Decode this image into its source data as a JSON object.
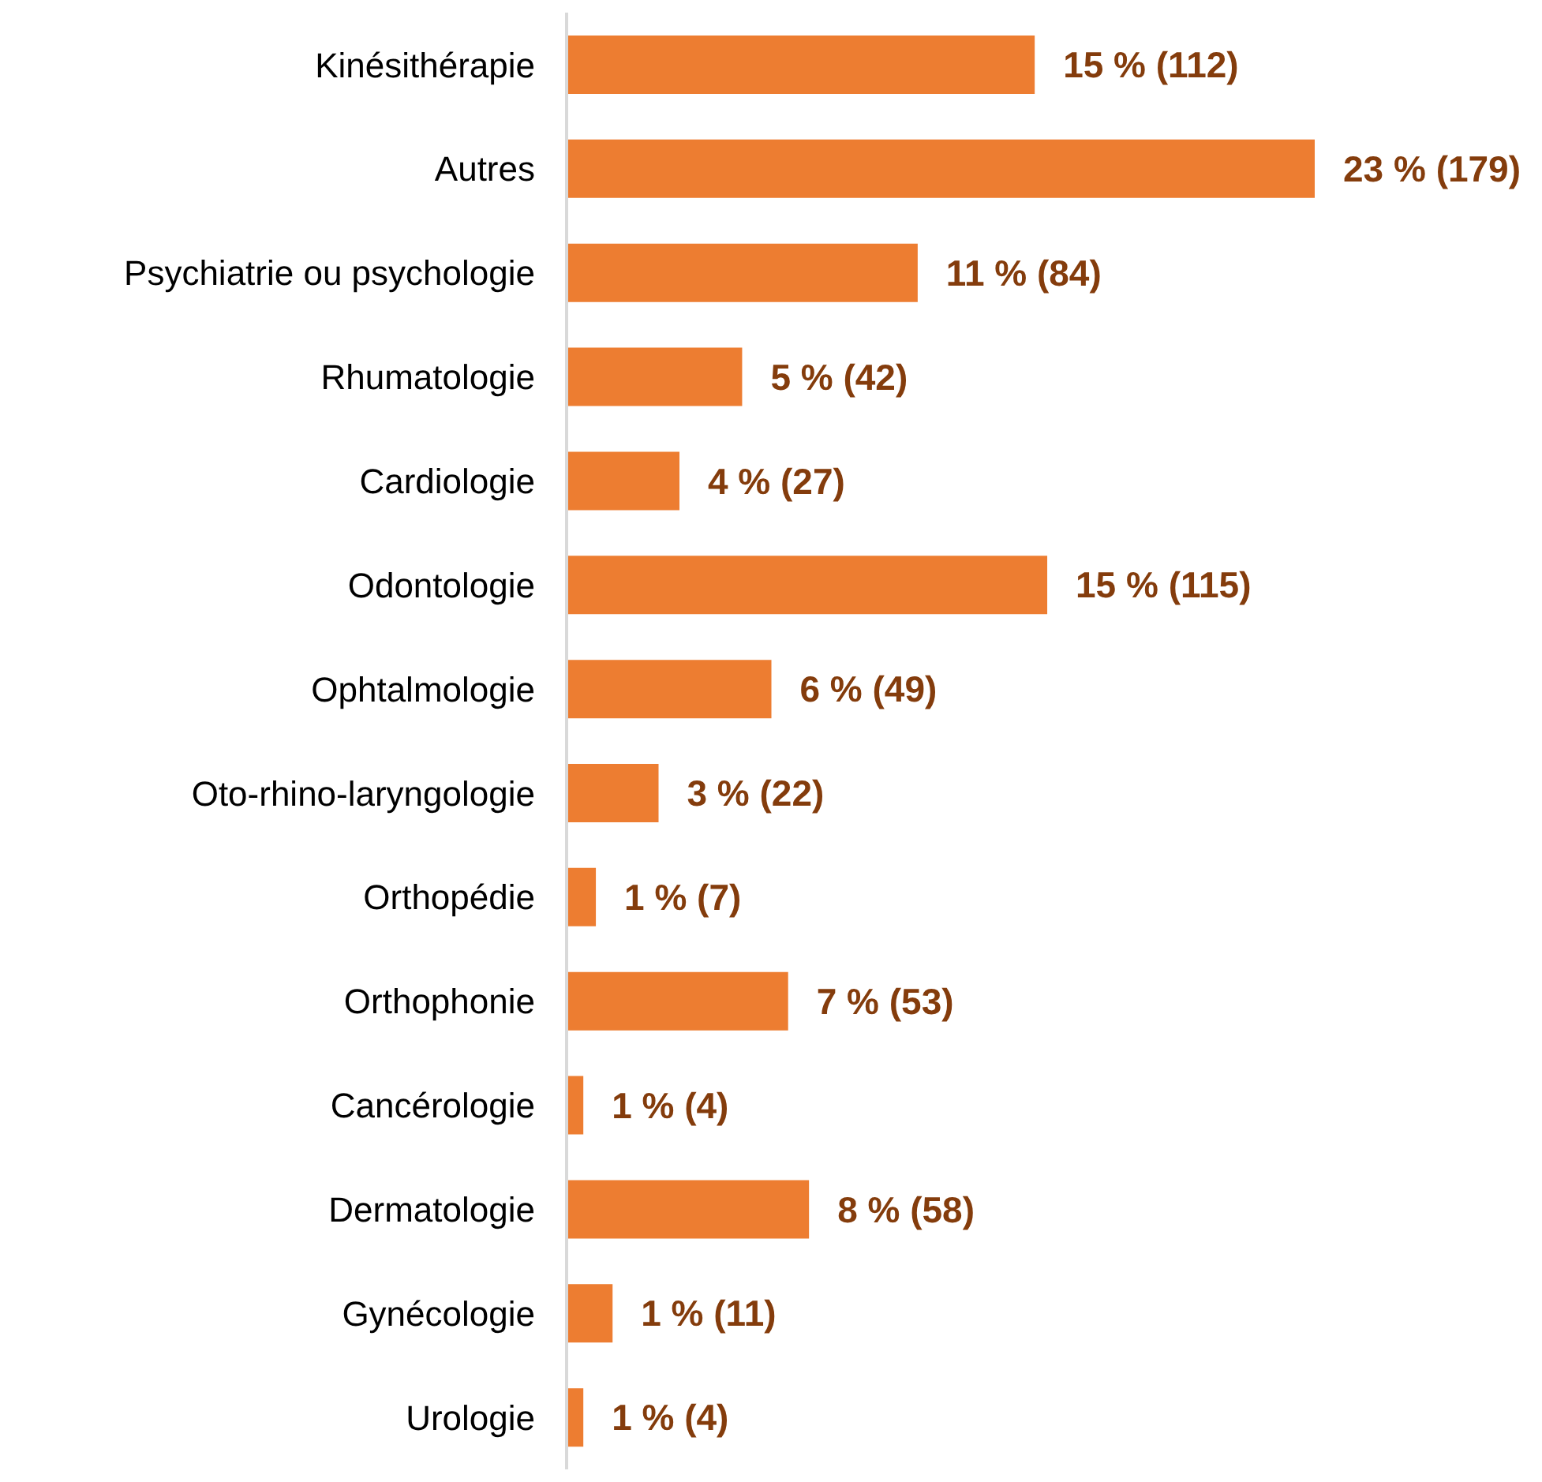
{
  "chart_data": {
    "type": "bar",
    "orientation": "horizontal",
    "tick_labels": "y",
    "grid": false,
    "legend": false,
    "categories": [
      "Kinésithérapie",
      "Autres",
      "Psychiatrie ou psychologie",
      "Rhumatologie",
      "Cardiologie",
      "Odontologie",
      "Ophtalmologie",
      "Oto-rhino-laryngologie",
      "Orthopédie",
      "Orthophonie",
      "Cancérologie",
      "Dermatologie",
      "Gynécologie",
      "Urologie"
    ],
    "values": [
      112,
      179,
      84,
      42,
      27,
      115,
      49,
      22,
      7,
      53,
      4,
      58,
      11,
      4
    ],
    "value_labels": [
      "15 % (112)",
      "23 % (179)",
      "11 % (84)",
      "5 % (42)",
      "4 % (27)",
      "15 % (115)",
      "6 % (49)",
      "3 % (22)",
      "1 % (7)",
      "7 % (53)",
      "1 % (4)",
      "8 % (58)",
      "1 % (11)",
      "1 % (4)"
    ],
    "color": "#ed7d31"
  }
}
